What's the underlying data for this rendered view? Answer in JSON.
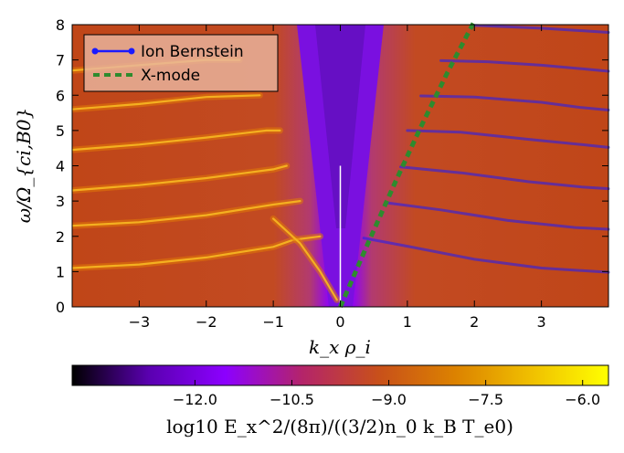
{
  "chart_data": {
    "type": "heatmap",
    "title": "",
    "xlabel": "k_x ρ_i",
    "ylabel": "ω/Ω_{ci,B0}",
    "xlim": [
      -4,
      4
    ],
    "ylim": [
      0,
      8
    ],
    "xticks": [
      -3,
      -2,
      -1,
      0,
      1,
      2,
      3
    ],
    "yticks": [
      0,
      1,
      2,
      3,
      4,
      5,
      6,
      7,
      8
    ],
    "colorbar": {
      "label": "log10 E_x^2/(8π)/((3/2)n_0 k_B T_e0)",
      "range": [
        -13.9,
        -5.6
      ],
      "ticks": [
        -12.0,
        -10.5,
        -9.0,
        -7.5,
        -6.0
      ],
      "tick_labels": [
        "−12.0",
        "−10.5",
        "−9.0",
        "−7.5",
        "−6.0"
      ],
      "colormap": "gnuplot",
      "stops": [
        "#000000",
        "#5a00b0",
        "#8c00ff",
        "#b4246a",
        "#c8501a",
        "#dc8200",
        "#f0c000",
        "#ffff00"
      ]
    },
    "legend": {
      "location": "top-left",
      "entries": [
        {
          "label": "Ion Bernstein",
          "color": "#1a1aff",
          "style": "solid-dot"
        },
        {
          "label": "X-mode",
          "color": "#2e8b2e",
          "style": "dashed"
        }
      ]
    },
    "series": [
      {
        "name": "Ion Bernstein",
        "color": "#1a1aff",
        "branches": [
          {
            "x": [
              0.35,
              1.0,
              2.0,
              3.0,
              4.0
            ],
            "y": [
              1.95,
              1.72,
              1.35,
              1.1,
              0.98
            ]
          },
          {
            "x": [
              0.7,
              1.5,
              2.5,
              3.5,
              4.0
            ],
            "y": [
              2.95,
              2.75,
              2.45,
              2.25,
              2.2
            ]
          },
          {
            "x": [
              0.9,
              1.8,
              2.8,
              3.6,
              4.0
            ],
            "y": [
              3.97,
              3.8,
              3.55,
              3.4,
              3.35
            ]
          },
          {
            "x": [
              1.0,
              1.8,
              2.8,
              3.6,
              4.0
            ],
            "y": [
              5.0,
              4.95,
              4.75,
              4.6,
              4.52
            ]
          },
          {
            "x": [
              1.2,
              2.0,
              3.0,
              3.6,
              4.0
            ],
            "y": [
              5.98,
              5.95,
              5.8,
              5.65,
              5.58
            ]
          },
          {
            "x": [
              1.5,
              2.2,
              3.0,
              3.6,
              4.0
            ],
            "y": [
              6.98,
              6.95,
              6.85,
              6.75,
              6.68
            ]
          },
          {
            "x": [
              2.0,
              3.0,
              4.0
            ],
            "y": [
              7.98,
              7.9,
              7.78
            ]
          }
        ]
      },
      {
        "name": "X-mode",
        "color": "#2e8b2e",
        "x": [
          0.0,
          0.4,
          0.8,
          1.2,
          1.6,
          2.0
        ],
        "y": [
          0.0,
          1.75,
          3.45,
          5.1,
          6.65,
          8.1
        ]
      }
    ],
    "spectral_bands": [
      {
        "x": [
          -4.0,
          -3.0,
          -2.0,
          -1.0,
          -0.7,
          -0.3
        ],
        "y": [
          1.1,
          1.2,
          1.4,
          1.7,
          1.9,
          2.0
        ]
      },
      {
        "x": [
          -4.0,
          -3.0,
          -2.0,
          -1.0,
          -0.6
        ],
        "y": [
          2.3,
          2.4,
          2.6,
          2.9,
          3.0
        ]
      },
      {
        "x": [
          -4.0,
          -3.0,
          -2.0,
          -1.0,
          -0.8
        ],
        "y": [
          3.3,
          3.45,
          3.65,
          3.9,
          4.0
        ]
      },
      {
        "x": [
          -4.0,
          -3.0,
          -2.0,
          -1.1,
          -0.9
        ],
        "y": [
          4.45,
          4.6,
          4.8,
          5.0,
          5.0
        ]
      },
      {
        "x": [
          -4.0,
          -3.0,
          -2.0,
          -1.2
        ],
        "y": [
          5.6,
          5.75,
          5.95,
          6.0
        ]
      },
      {
        "x": [
          -4.0,
          -3.0,
          -2.0,
          -1.5
        ],
        "y": [
          6.7,
          6.85,
          7.0,
          7.0
        ]
      },
      {
        "x": [
          -0.05,
          -0.3,
          -0.6,
          -1.0
        ],
        "y": [
          0.2,
          1.0,
          1.8,
          2.5
        ]
      }
    ],
    "vertical_line": {
      "x": 0.0,
      "y": [
        0.0,
        4.0
      ],
      "color": "#ffffff"
    }
  }
}
